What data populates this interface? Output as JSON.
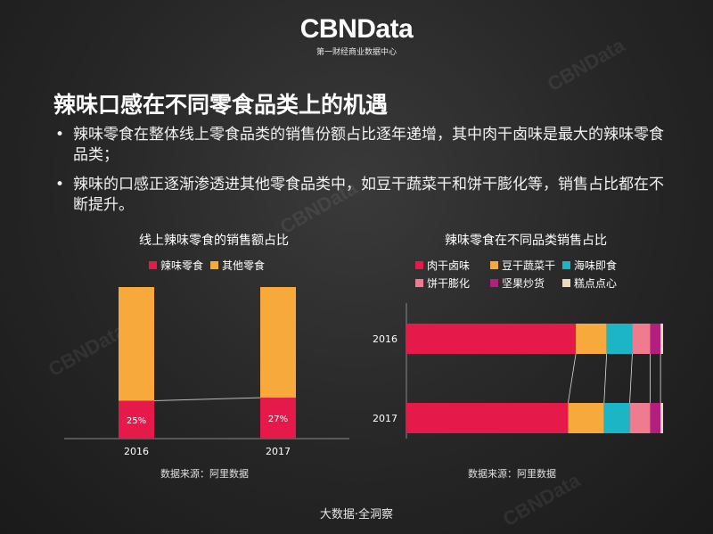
{
  "brand": {
    "name": "CBNData",
    "tagline": "第一财经商业数据中心",
    "watermark": "CBNData"
  },
  "headline": "辣味口感在不同零食品类上的机遇",
  "bullets": [
    "辣味零食在整体线上零食品类的销售份额占比逐年递增，其中肉干卤味是最大的辣味零食品类；",
    "辣味的口感正逐渐渗透进其他零食品类中，如豆干蔬菜干和饼干膨化等，销售占比都在不断提升。"
  ],
  "bullet_marker": "•",
  "footer": "大数据·全洞察",
  "colors": {
    "spicy": "#e6194b",
    "other": "#f7a93c",
    "meat": "#e6194b",
    "tofu": "#f7a93c",
    "seafood": "#1cb5c6",
    "biscuit": "#f07a8e",
    "nuts": "#b21f7e",
    "pastry": "#efd9b8"
  },
  "chart_data": [
    {
      "type": "bar",
      "stacked": true,
      "title": "线上辣味零食的销售额占比",
      "categories": [
        "2016",
        "2017"
      ],
      "series": [
        {
          "name": "辣味零食",
          "values": [
            25,
            27
          ],
          "labels": [
            "25%",
            "27%"
          ]
        },
        {
          "name": "其他零食",
          "values": [
            75,
            73
          ]
        }
      ],
      "ylim": [
        0,
        100
      ],
      "source": "数据来源：阿里数据"
    },
    {
      "type": "bar",
      "orientation": "horizontal",
      "stacked": true,
      "title": "辣味零食在不同品类销售占比",
      "categories": [
        "2016",
        "2017"
      ],
      "series": [
        {
          "name": "肉干卤味",
          "values": [
            66,
            63
          ]
        },
        {
          "name": "豆干蔬菜干",
          "values": [
            12,
            14
          ]
        },
        {
          "name": "海味即食",
          "values": [
            10,
            10
          ]
        },
        {
          "name": "饼干膨化",
          "values": [
            7,
            8
          ]
        },
        {
          "name": "坚果炒货",
          "values": [
            4,
            4
          ]
        },
        {
          "name": "糕点点心",
          "values": [
            1,
            1
          ]
        }
      ],
      "xlim": [
        0,
        100
      ],
      "source": "数据来源：阿里数据"
    }
  ]
}
